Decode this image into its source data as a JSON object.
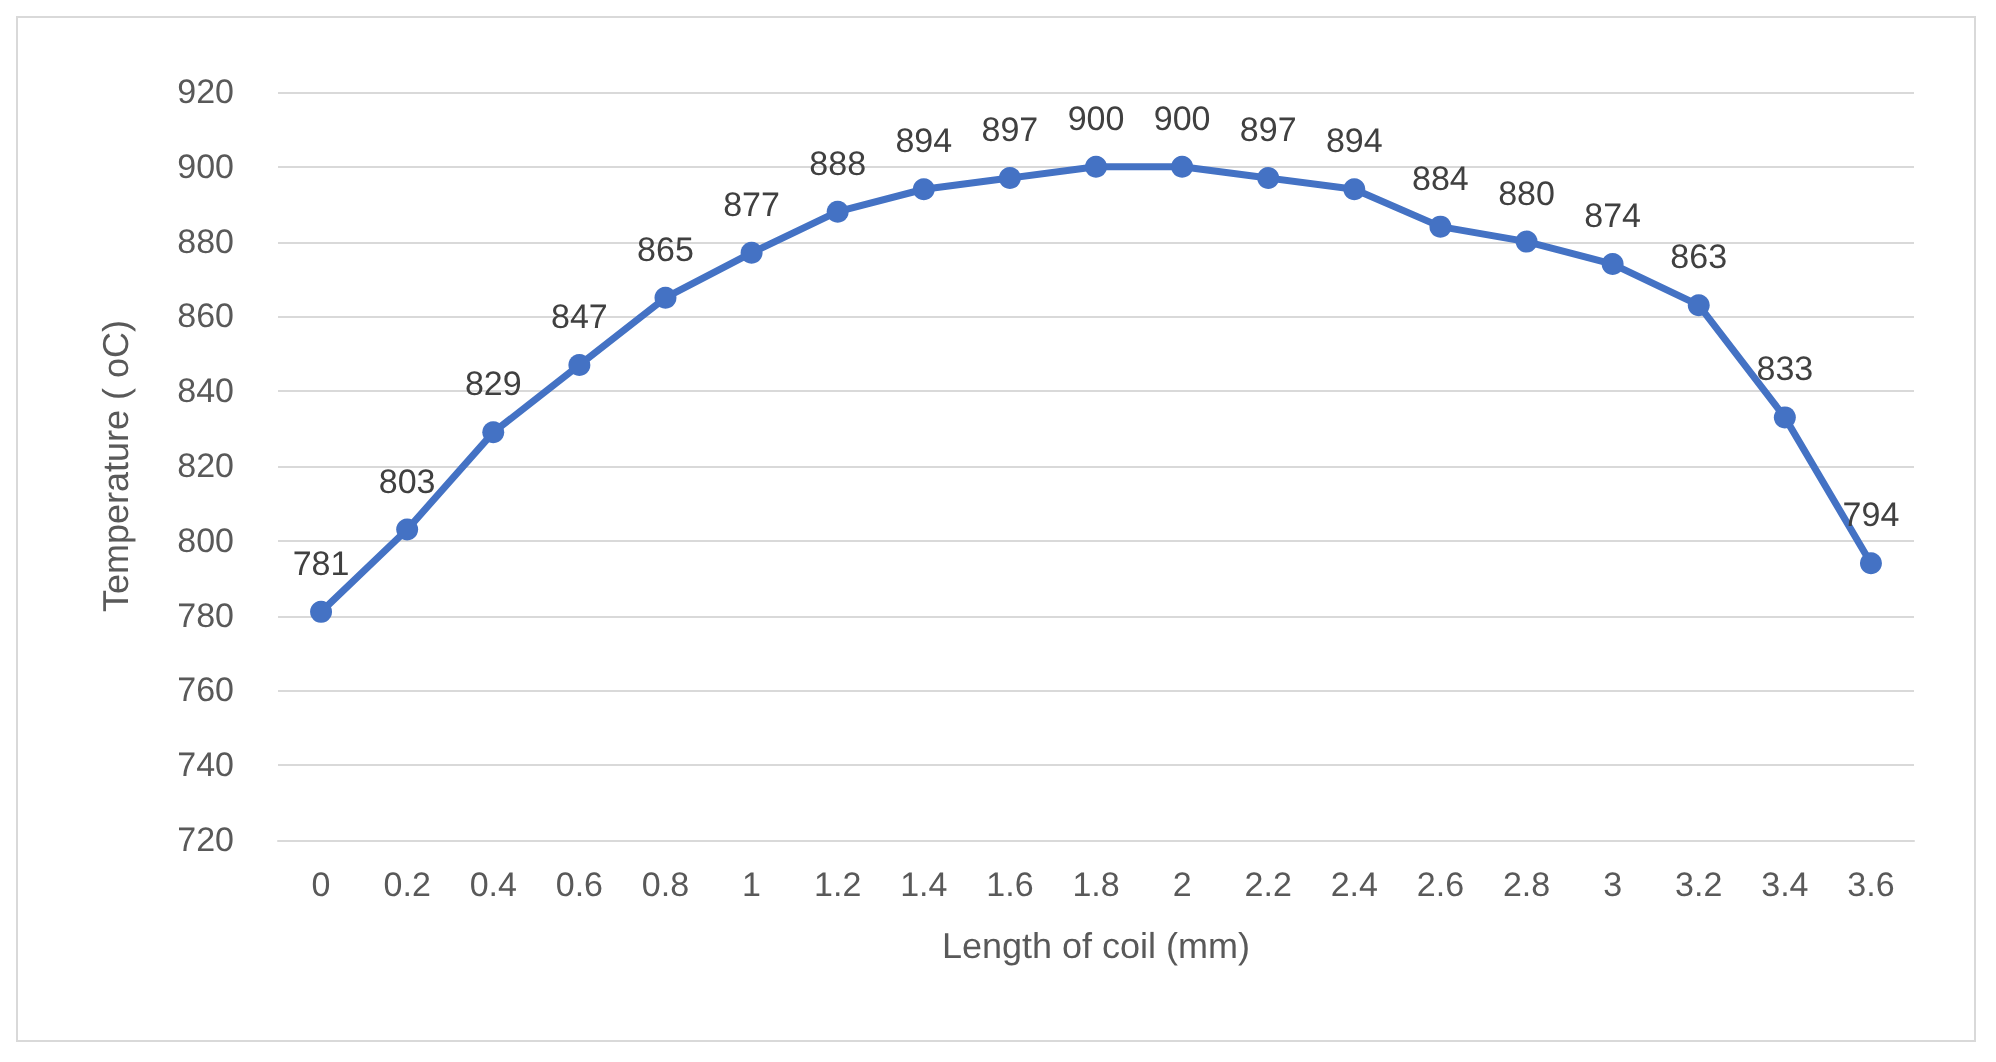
{
  "chart_data": {
    "type": "line",
    "xlabel": "Length of coil (mm)",
    "ylabel": "Temperature ( oC)",
    "categories": [
      "0",
      "0.2",
      "0.4",
      "0.6",
      "0.8",
      "1",
      "1.2",
      "1.4",
      "1.6",
      "1.8",
      "2",
      "2.2",
      "2.4",
      "2.6",
      "2.8",
      "3",
      "3.2",
      "3.4",
      "3.6"
    ],
    "series": [
      {
        "color": "#4472c4",
        "values": [
          781,
          803,
          829,
          847,
          865,
          877,
          888,
          894,
          897,
          900,
          900,
          897,
          894,
          884,
          880,
          874,
          863,
          833,
          794
        ]
      }
    ],
    "ylim": [
      720,
      920
    ],
    "yticks": [
      720,
      740,
      760,
      780,
      800,
      820,
      840,
      860,
      880,
      900,
      920
    ],
    "grid": "y",
    "marker": "circle",
    "line_style": "solid",
    "data_labels": true
  }
}
